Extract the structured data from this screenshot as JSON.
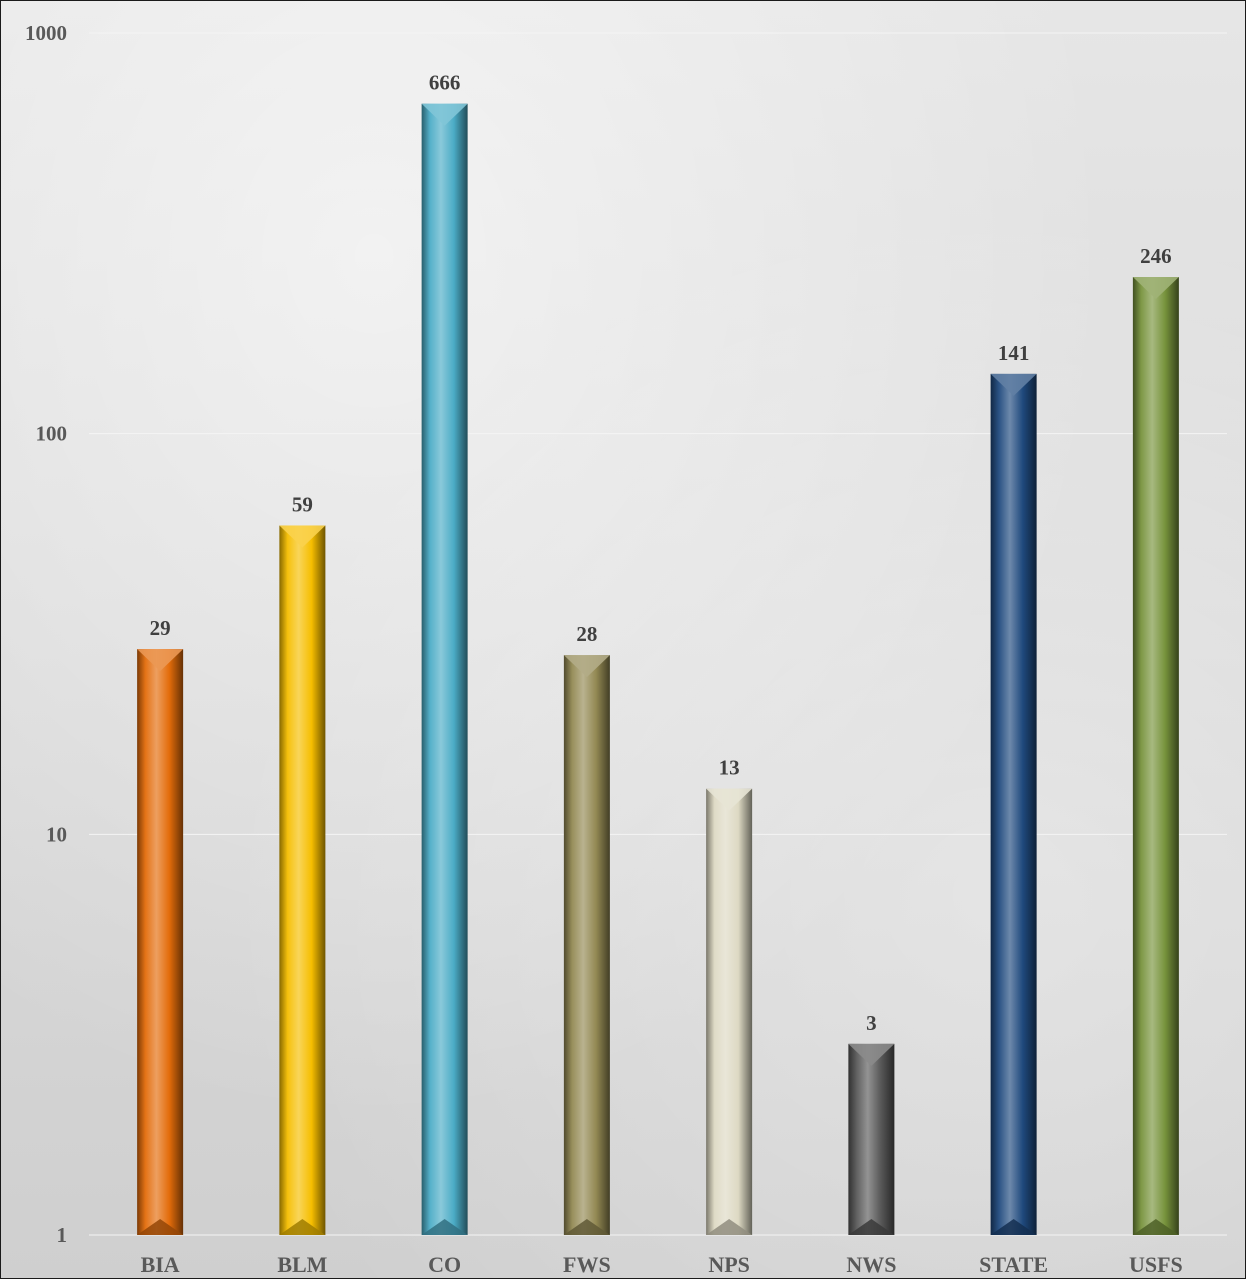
{
  "chart_data": {
    "type": "bar",
    "scale": "log",
    "categories": [
      "BIA",
      "BLM",
      "CO",
      "FWS",
      "NPS",
      "NWS",
      "STATE",
      "USFS"
    ],
    "values": [
      29,
      59,
      666,
      28,
      13,
      3,
      141,
      246
    ],
    "ylim": [
      1,
      1000
    ],
    "y_ticks": [
      "1",
      "10",
      "100",
      "1000"
    ],
    "grid": true,
    "legend": "none",
    "data_labels": true,
    "colors": [
      "#e36c0a",
      "#f6be00",
      "#4bacc6",
      "#938953",
      "#ddd9c3",
      "#595959",
      "#1f497d",
      "#77933c"
    ]
  }
}
